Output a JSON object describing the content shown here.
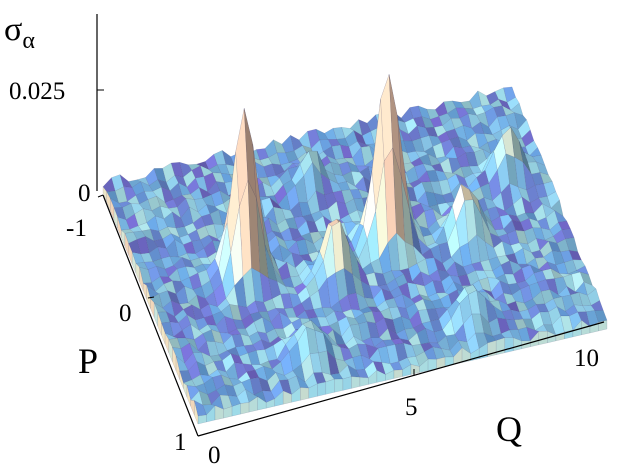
{
  "chart_data": {
    "type": "surface3d",
    "title": "",
    "z_axis": {
      "label": "σα",
      "ticks": [
        "0",
        "0.025"
      ],
      "range": [
        0,
        0.03
      ]
    },
    "p_axis": {
      "label": "P",
      "ticks": [
        "-1",
        "0",
        "1"
      ],
      "range": [
        -1,
        1
      ]
    },
    "q_axis": {
      "label": "Q",
      "ticks": [
        "0",
        "5",
        "10"
      ],
      "range": [
        0,
        10
      ]
    },
    "peaks": [
      {
        "q": 2.3,
        "p": 0.0,
        "z": 0.028
      },
      {
        "q": 5.8,
        "p": 0.0,
        "z": 0.029
      },
      {
        "q": 4.3,
        "p": 0.2,
        "z": 0.011
      },
      {
        "q": 7.6,
        "p": 0.1,
        "z": 0.009
      },
      {
        "q": 9.1,
        "p": -0.3,
        "z": 0.008
      },
      {
        "q": 3.0,
        "p": 0.75,
        "z": 0.006
      },
      {
        "q": 7.0,
        "p": 0.75,
        "z": 0.005
      },
      {
        "q": 4.6,
        "p": -0.6,
        "z": 0.006
      }
    ],
    "background_level": 0.0025,
    "colormap": [
      "#7b6fd8",
      "#6fb0f0",
      "#a8e8f4",
      "#f2e6c4",
      "#f0c8b0"
    ]
  }
}
